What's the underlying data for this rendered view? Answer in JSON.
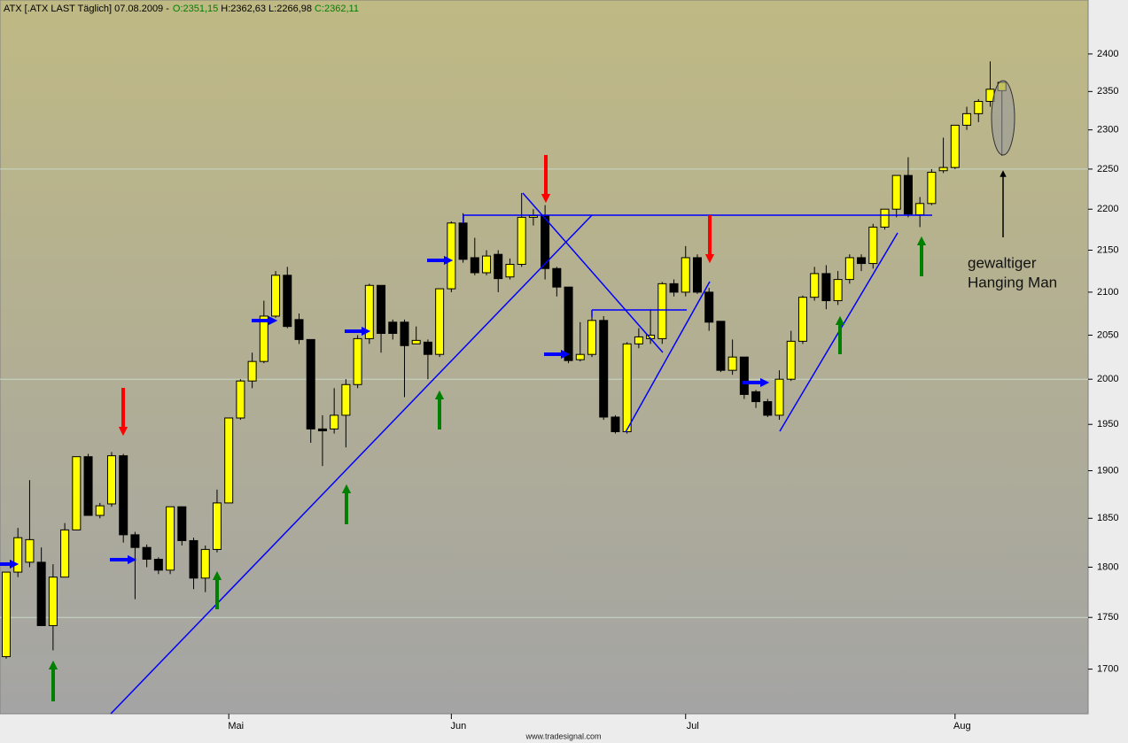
{
  "chart_data": {
    "type": "candlestick",
    "title": "ATX [.ATX LAST Täglich] 07.08.2009 -",
    "header_values": [
      {
        "text": "O:2351,15",
        "color": "#008000"
      },
      {
        "text": "H:2362,63",
        "color": "#000000"
      },
      {
        "text": "L:2266,98",
        "color": "#000000"
      },
      {
        "text": "C:2362,11",
        "color": "#008000"
      }
    ],
    "source": "www.tradesignal.com",
    "annotation": [
      "gewaltiger",
      "Hanging Man"
    ],
    "categories": [
      null,
      null,
      null,
      null,
      null,
      null,
      null,
      null,
      null,
      null,
      null,
      null,
      null,
      null,
      null,
      null,
      null,
      null,
      null,
      "Mai",
      null,
      null,
      null,
      null,
      null,
      null,
      null,
      null,
      null,
      null,
      null,
      null,
      null,
      null,
      null,
      null,
      null,
      null,
      "Jun",
      null,
      null,
      null,
      null,
      null,
      null,
      null,
      null,
      null,
      null,
      null,
      null,
      null,
      null,
      null,
      null,
      null,
      null,
      null,
      "Jul",
      null,
      null,
      null,
      null,
      null,
      null,
      null,
      null,
      null,
      null,
      null,
      null,
      null,
      null,
      null,
      null,
      null,
      null,
      null,
      null,
      null,
      null,
      "Aug",
      null,
      null,
      null,
      null
    ],
    "open": [
      1712,
      1795,
      1805,
      1805,
      1742,
      1790,
      1838,
      1915,
      1853,
      1865,
      1916,
      1833,
      1820,
      1808,
      1797,
      1862,
      1827,
      1789,
      1818,
      1866,
      1957,
      1998,
      2020,
      2072,
      2120,
      2068,
      2045,
      1945,
      1945,
      1960,
      1994,
      2046,
      2108,
      2065,
      2065,
      2040,
      2042,
      2028,
      2104,
      2183,
      2141,
      2123,
      2145,
      2118,
      2133,
      2190,
      2192,
      2128,
      2106,
      2022,
      2028,
      2067,
      1958,
      1942,
      2040,
      2046,
      2046,
      2110,
      2100,
      2141,
      2100,
      2066,
      2010,
      2025,
      1986,
      1975,
      1960,
      2000,
      2043,
      2094,
      2122,
      2090,
      2115,
      2141,
      2134,
      2178,
      2200,
      2242,
      2193,
      2207,
      2248,
      2252,
      2306,
      2321,
      2337,
      2351.15
    ],
    "high": [
      1795,
      1840,
      1890,
      1820,
      1803,
      1845,
      1915,
      1918,
      1866,
      1920,
      1918,
      1836,
      1823,
      1810,
      1862,
      1862,
      1830,
      1822,
      1880,
      1957,
      2000,
      2030,
      2090,
      2125,
      2130,
      2075,
      2045,
      1960,
      1990,
      2000,
      2050,
      2110,
      2108,
      2068,
      2068,
      2060,
      2045,
      2104,
      2185,
      2195,
      2165,
      2150,
      2150,
      2140,
      2220,
      2200,
      2205,
      2130,
      2106,
      2065,
      2075,
      2072,
      1960,
      2042,
      2058,
      2080,
      2112,
      2115,
      2155,
      2145,
      2105,
      2066,
      2045,
      2025,
      1988,
      1978,
      2010,
      2055,
      2096,
      2130,
      2132,
      2125,
      2145,
      2145,
      2182,
      2200,
      2242,
      2265,
      2215,
      2250,
      2290,
      2306,
      2330,
      2340,
      2390,
      2362.63
    ],
    "low": [
      1710,
      1790,
      1800,
      1742,
      1718,
      1790,
      1838,
      1853,
      1850,
      1862,
      1825,
      1768,
      1800,
      1793,
      1793,
      1822,
      1778,
      1775,
      1815,
      1866,
      1955,
      1990,
      2018,
      2070,
      2058,
      2040,
      1930,
      1905,
      1940,
      1925,
      1990,
      2040,
      2030,
      2045,
      1980,
      2040,
      2000,
      2025,
      2100,
      2135,
      2120,
      2120,
      2100,
      2115,
      2130,
      2180,
      2115,
      2095,
      2018,
      2020,
      2025,
      1955,
      1940,
      1940,
      2035,
      2040,
      2040,
      2095,
      2095,
      2098,
      2055,
      2008,
      2005,
      1978,
      1968,
      1958,
      1955,
      1998,
      2040,
      2090,
      2080,
      2085,
      2110,
      2125,
      2128,
      2175,
      2190,
      2190,
      2178,
      2205,
      2245,
      2250,
      2300,
      2310,
      2330,
      2266.98
    ],
    "close": [
      1795,
      1830,
      1828,
      1742,
      1790,
      1838,
      1915,
      1853,
      1863,
      1916,
      1833,
      1820,
      1808,
      1797,
      1862,
      1827,
      1789,
      1818,
      1866,
      1957,
      1998,
      2020,
      2072,
      2120,
      2060,
      2045,
      1945,
      1943,
      1960,
      1994,
      2046,
      2108,
      2052,
      2052,
      2038,
      2044,
      2028,
      2104,
      2183,
      2139,
      2123,
      2143,
      2116,
      2133,
      2190,
      2192,
      2128,
      2106,
      2021,
      2028,
      2067,
      1958,
      1942,
      2040,
      2048,
      2050,
      2110,
      2100,
      2141,
      2100,
      2065,
      2010,
      2025,
      1983,
      1975,
      1960,
      2000,
      2043,
      2094,
      2122,
      2090,
      2115,
      2141,
      2134,
      2178,
      2200,
      2242,
      2194,
      2207,
      2246,
      2252,
      2306,
      2321,
      2337,
      2353,
      2362.11
    ],
    "up_color": "#ffff00",
    "down_color": "#000000",
    "log_scale": true,
    "ylim": [
      1658,
      2470
    ],
    "yticks": [
      1700,
      1750,
      1800,
      1850,
      1900,
      1950,
      2000,
      2050,
      2100,
      2150,
      2200,
      2250,
      2300,
      2350,
      2400
    ],
    "grid_values": [
      1750,
      2000,
      2250
    ]
  }
}
